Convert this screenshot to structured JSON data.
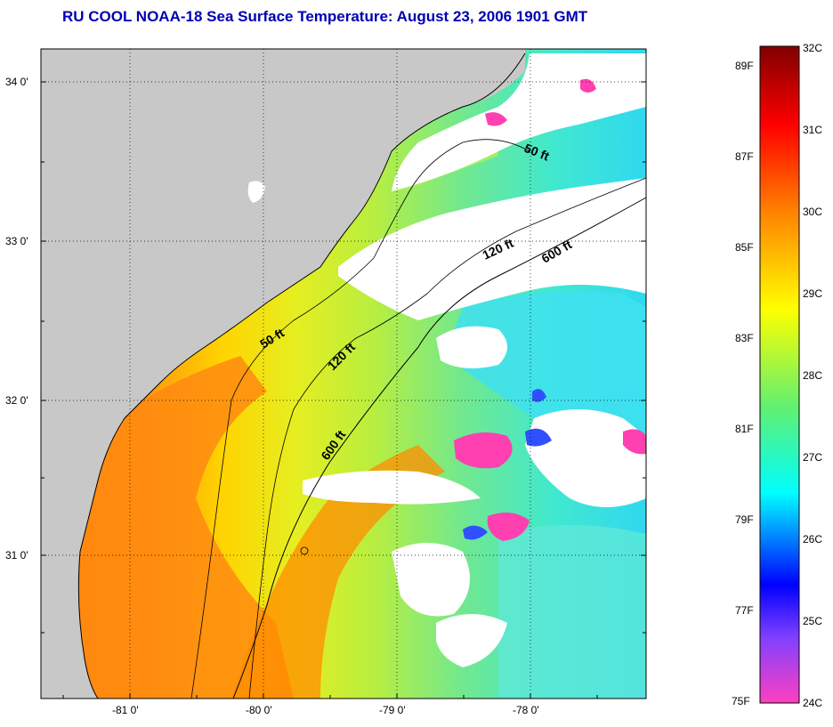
{
  "title": "RU COOL  NOAA-18  Sea Surface Temperature:  August 23, 2006 1901 GMT",
  "axes": {
    "lat_ticks": [
      "34 0'",
      "33 0'",
      "32 0'",
      "31 0'"
    ],
    "lon_ticks": [
      "-81 0'",
      "-80 0'",
      "-79 0'",
      "-78 0'"
    ]
  },
  "contours": [
    {
      "label": "50 ft",
      "where": "north"
    },
    {
      "label": "120 ft",
      "where": "north"
    },
    {
      "label": "600 ft",
      "where": "north"
    },
    {
      "label": "50 ft",
      "where": "south"
    },
    {
      "label": "120 ft",
      "where": "south"
    },
    {
      "label": "600 ft",
      "where": "south"
    }
  ],
  "colorbar": {
    "celsius": [
      "32C",
      "31C",
      "30C",
      "29C",
      "28C",
      "27C",
      "26C",
      "25C",
      "24C"
    ],
    "fahrenheit": [
      "89F",
      "87F",
      "85F",
      "83F",
      "81F",
      "79F",
      "77F",
      "75F"
    ],
    "colors": {
      "top": "#800000",
      "red": "#ff0000",
      "orange": "#ff8000",
      "yellow": "#ffff00",
      "green": "#40e080",
      "cyan": "#00ffff",
      "blue": "#0000ff",
      "magenta": "#ff00ff"
    }
  },
  "colors": {
    "land": "#c8c8c8",
    "cloud": "#ffffff",
    "title": "#0000b4"
  }
}
